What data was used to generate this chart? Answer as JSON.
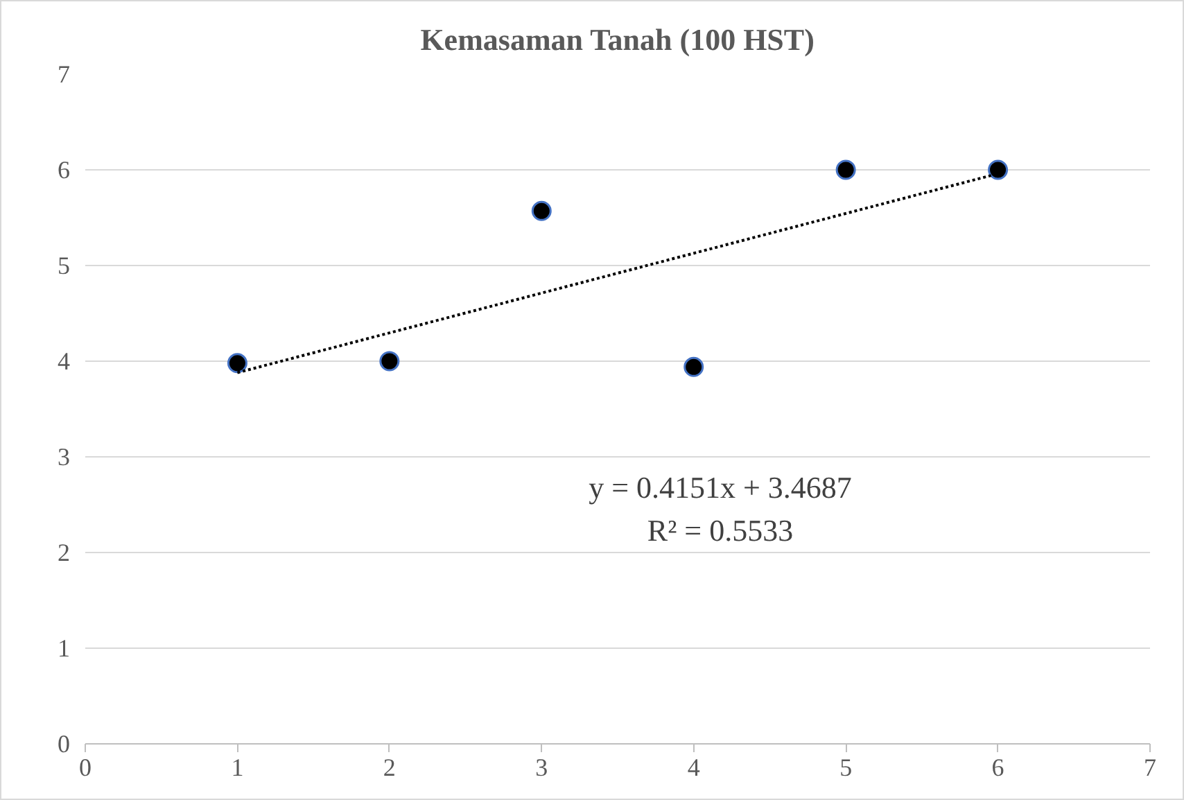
{
  "chart_data": {
    "type": "scatter",
    "title": "Kemasaman Tanah (100 HST)",
    "x": [
      1,
      2,
      3,
      4,
      5,
      6
    ],
    "series": [
      {
        "color": "#000000",
        "values": [
          3.98,
          4.0,
          5.57,
          3.94,
          6.0,
          6.0
        ],
        "marker": "circle"
      },
      {
        "type": "line",
        "color": "#000000",
        "x": [
          1,
          6
        ],
        "values": [
          3.88,
          5.96
        ],
        "line_style": "dotted"
      }
    ],
    "xlim": [
      0,
      7
    ],
    "ylim": [
      0,
      7
    ],
    "xticks": [
      0,
      1,
      2,
      3,
      4,
      5,
      6,
      7
    ],
    "yticks": [
      0,
      1,
      2,
      3,
      4,
      5,
      6,
      7
    ],
    "grid": "y",
    "annotations": [
      "y = 0.4151x + 3.4687",
      "R² = 0.5533"
    ]
  }
}
